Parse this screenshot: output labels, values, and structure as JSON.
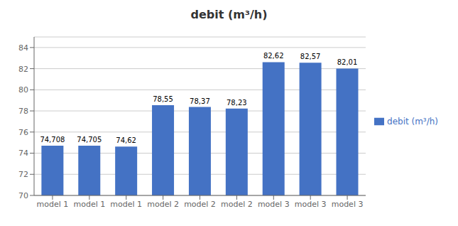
{
  "chart_data": {
    "type": "bar",
    "title": "debit (m³/h)",
    "categories": [
      "model 1",
      "model 1",
      "model 1",
      "model 2",
      "model 2",
      "model 2",
      "model 3",
      "model 3",
      "model 3"
    ],
    "series": [
      {
        "name": "debit (m³/h)",
        "color": "#4472C4",
        "values": [
          74.708,
          74.705,
          74.62,
          78.55,
          78.37,
          78.23,
          82.62,
          82.57,
          82.01
        ],
        "value_labels": [
          "74,708",
          "74,705",
          "74,62",
          "78,55",
          "78,37",
          "78,23",
          "82,62",
          "82,57",
          "82,01"
        ]
      }
    ],
    "ylim": [
      70,
      85
    ],
    "yticks": [
      70,
      72,
      74,
      76,
      78,
      80,
      82,
      84
    ],
    "grid": true,
    "legend": "right",
    "data_labels": true
  }
}
